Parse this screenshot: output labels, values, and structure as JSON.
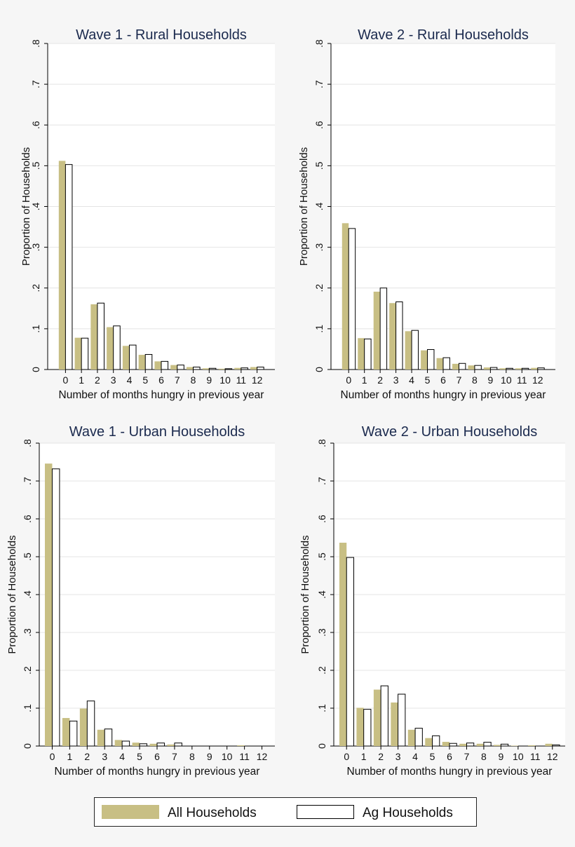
{
  "colors": {
    "all_households": "#c8bf84",
    "ag_households": "#ffffff",
    "bar_outline": "#000000",
    "title": "#1b2a4e",
    "gridline": "#e4e4e4",
    "plot_background": "#ffffff"
  },
  "legend": {
    "all_label": "All Households",
    "ag_label": "Ag Households"
  },
  "chart_data": [
    {
      "type": "bar",
      "title": "Wave 1 - Rural Households",
      "xlabel": "Number of months hungry in previous year",
      "ylabel": "Proportion of Households",
      "ylim": [
        0,
        0.8
      ],
      "yticks": [
        0,
        0.1,
        0.2,
        0.3,
        0.4,
        0.5,
        0.6,
        0.7,
        0.8
      ],
      "ytick_labels": [
        "0",
        ".1",
        ".2",
        ".3",
        ".4",
        ".5",
        ".6",
        ".7",
        ".8"
      ],
      "categories": [
        "0",
        "1",
        "2",
        "3",
        "4",
        "5",
        "6",
        "7",
        "8",
        "9",
        "10",
        "11",
        "12"
      ],
      "grid": true,
      "series": [
        {
          "name": "All Households",
          "values": [
            0.512,
            0.078,
            0.16,
            0.104,
            0.058,
            0.036,
            0.02,
            0.011,
            0.006,
            0.003,
            0.002,
            0.004,
            0.006
          ]
        },
        {
          "name": "Ag Households",
          "values": [
            0.503,
            0.077,
            0.163,
            0.107,
            0.06,
            0.037,
            0.02,
            0.011,
            0.006,
            0.003,
            0.002,
            0.004,
            0.006
          ]
        }
      ]
    },
    {
      "type": "bar",
      "title": "Wave 2 - Rural Households",
      "xlabel": "Number of months hungry in previous year",
      "ylabel": "Proportion of Households",
      "ylim": [
        0,
        0.8
      ],
      "yticks": [
        0,
        0.1,
        0.2,
        0.3,
        0.4,
        0.5,
        0.6,
        0.7,
        0.8
      ],
      "ytick_labels": [
        "0",
        ".1",
        ".2",
        ".3",
        ".4",
        ".5",
        ".6",
        ".7",
        ".8"
      ],
      "categories": [
        "0",
        "1",
        "2",
        "3",
        "4",
        "5",
        "6",
        "7",
        "8",
        "9",
        "10",
        "11",
        "12"
      ],
      "grid": true,
      "series": [
        {
          "name": "All Households",
          "values": [
            0.359,
            0.077,
            0.191,
            0.163,
            0.094,
            0.047,
            0.028,
            0.014,
            0.01,
            0.005,
            0.003,
            0.003,
            0.004
          ]
        },
        {
          "name": "Ag Households",
          "values": [
            0.346,
            0.075,
            0.2,
            0.166,
            0.096,
            0.049,
            0.029,
            0.015,
            0.01,
            0.005,
            0.003,
            0.003,
            0.004
          ]
        }
      ]
    },
    {
      "type": "bar",
      "title": "Wave 1 - Urban Households",
      "xlabel": "Number of months hungry in previous year",
      "ylabel": "Proportion of Households",
      "ylim": [
        0,
        0.8
      ],
      "yticks": [
        0,
        0.1,
        0.2,
        0.3,
        0.4,
        0.5,
        0.6,
        0.7,
        0.8
      ],
      "ytick_labels": [
        "0",
        ".1",
        ".2",
        ".3",
        ".4",
        ".5",
        ".6",
        ".7",
        ".8"
      ],
      "categories": [
        "0",
        "1",
        "2",
        "3",
        "4",
        "5",
        "6",
        "7",
        "8",
        "9",
        "10",
        "11",
        "12"
      ],
      "grid": true,
      "series": [
        {
          "name": "All Households",
          "values": [
            0.746,
            0.074,
            0.099,
            0.043,
            0.016,
            0.009,
            0.006,
            0.004,
            0.0,
            0.0,
            0.0,
            0.002,
            0.0
          ]
        },
        {
          "name": "Ag Households",
          "values": [
            0.732,
            0.066,
            0.119,
            0.045,
            0.013,
            0.006,
            0.008,
            0.008,
            0.0,
            0.0,
            0.0,
            0.0,
            0.0
          ]
        }
      ]
    },
    {
      "type": "bar",
      "title": "Wave 2 - Urban Households",
      "xlabel": "Number of months hungry in previous year",
      "ylabel": "Proportion of Households",
      "ylim": [
        0,
        0.8
      ],
      "yticks": [
        0,
        0.1,
        0.2,
        0.3,
        0.4,
        0.5,
        0.6,
        0.7,
        0.8
      ],
      "ytick_labels": [
        "0",
        ".1",
        ".2",
        ".3",
        ".4",
        ".5",
        ".6",
        ".7",
        ".8"
      ],
      "categories": [
        "0",
        "1",
        "2",
        "3",
        "4",
        "5",
        "6",
        "7",
        "8",
        "9",
        "10",
        "11",
        "12"
      ],
      "grid": true,
      "series": [
        {
          "name": "All Households",
          "values": [
            0.537,
            0.101,
            0.149,
            0.115,
            0.043,
            0.021,
            0.011,
            0.006,
            0.006,
            0.003,
            0.001,
            0.002,
            0.006
          ]
        },
        {
          "name": "Ag Households",
          "values": [
            0.498,
            0.097,
            0.159,
            0.137,
            0.047,
            0.027,
            0.007,
            0.008,
            0.01,
            0.005,
            0.0,
            0.0,
            0.003
          ]
        }
      ]
    }
  ]
}
